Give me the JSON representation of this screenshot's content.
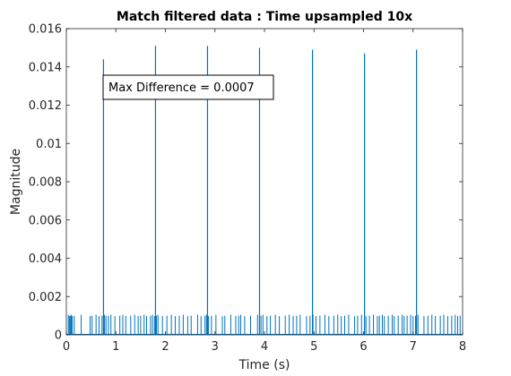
{
  "chart_data": {
    "type": "line",
    "plot_style": "stem-lines",
    "title": "Match filtered data : Time upsampled 10x",
    "xlabel": "Time (s)",
    "ylabel": "Magnitude",
    "xlim": [
      0,
      8
    ],
    "ylim": [
      0,
      0.016
    ],
    "x_ticks": [
      0,
      1,
      2,
      3,
      4,
      5,
      6,
      7,
      8
    ],
    "x_tick_labels": [
      "0",
      "1",
      "2",
      "3",
      "4",
      "5",
      "6",
      "7",
      "8"
    ],
    "y_ticks": [
      0,
      0.002,
      0.004,
      0.006,
      0.008,
      0.01,
      0.012,
      0.014,
      0.016
    ],
    "y_tick_labels": [
      "0",
      "0.002",
      "0.004",
      "0.006",
      "0.008",
      "0.01",
      "0.012",
      "0.014",
      "0.016"
    ],
    "grid": false,
    "box": true,
    "line_color": "#0072BD",
    "annotation": "Max Difference = 0.0007",
    "series": [
      {
        "peaks": [
          {
            "x": 0.75,
            "y": 0.0144
          },
          {
            "x": 1.8,
            "y": 0.0151
          },
          {
            "x": 2.85,
            "y": 0.0151
          },
          {
            "x": 3.9,
            "y": 0.015
          },
          {
            "x": 4.97,
            "y": 0.0149
          },
          {
            "x": 6.02,
            "y": 0.0147
          },
          {
            "x": 7.07,
            "y": 0.0149
          }
        ],
        "noise_x": [
          0.04,
          0.06,
          0.08,
          0.1,
          0.12,
          0.16,
          0.3,
          0.48,
          0.52,
          0.6,
          0.66,
          0.72,
          0.77,
          0.8,
          0.85,
          0.9,
          0.98,
          1.08,
          1.14,
          1.2,
          1.3,
          1.38,
          1.45,
          1.5,
          1.57,
          1.62,
          1.7,
          1.74,
          1.78,
          1.82,
          1.85,
          1.94,
          2.03,
          2.12,
          2.2,
          2.28,
          2.36,
          2.45,
          2.52,
          2.65,
          2.72,
          2.8,
          2.83,
          2.87,
          2.93,
          3.02,
          3.15,
          3.2,
          3.32,
          3.42,
          3.48,
          3.52,
          3.6,
          3.72,
          3.86,
          3.9,
          3.93,
          3.97,
          4.05,
          4.12,
          4.22,
          4.3,
          4.42,
          4.5,
          4.58,
          4.65,
          4.72,
          4.85,
          4.92,
          4.98,
          5.04,
          5.12,
          5.22,
          5.3,
          5.4,
          5.48,
          5.55,
          5.62,
          5.7,
          5.82,
          5.88,
          5.96,
          6.05,
          6.12,
          6.2,
          6.28,
          6.32,
          6.38,
          6.42,
          6.5,
          6.58,
          6.62,
          6.7,
          6.78,
          6.82,
          6.88,
          6.95,
          7.0,
          7.05,
          7.1,
          7.22,
          7.3,
          7.38,
          7.45,
          7.55,
          7.62,
          7.7,
          7.78,
          7.85,
          7.9,
          7.95
        ],
        "noise_level": 0.001
      }
    ]
  }
}
